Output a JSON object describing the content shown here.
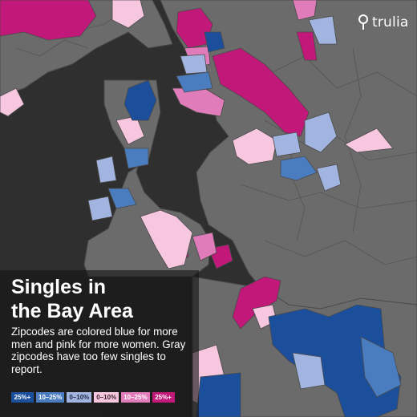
{
  "brand": {
    "name": "trulia",
    "icon": "map-pin-icon"
  },
  "title_lines": [
    "Singles in",
    "the Bay Area"
  ],
  "description": "Zipcodes are colored blue for more men and pink for more women. Gray zipcodes have too few singles to report.",
  "legend": [
    {
      "label": "25%+",
      "color": "#1b4f9c",
      "text_color": "#ffffff"
    },
    {
      "label": "10–25%",
      "color": "#4a7cc0",
      "text_color": "#ffffff"
    },
    {
      "label": "0–10%",
      "color": "#a2b4e0",
      "text_color": "#1f2a44"
    },
    {
      "label": "0–10%",
      "color": "#f7c7e0",
      "text_color": "#3a1f2e"
    },
    {
      "label": "10–25%",
      "color": "#e07cba",
      "text_color": "#ffffff"
    },
    {
      "label": "25%+",
      "color": "#c2187a",
      "text_color": "#ffffff"
    }
  ],
  "map_colors": {
    "water": "#2f2f2f",
    "no_data": "#6b6b6b",
    "boundary": "#4a4a4a"
  }
}
